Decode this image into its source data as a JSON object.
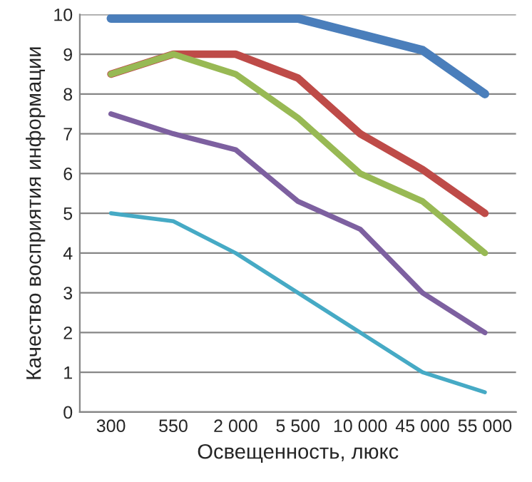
{
  "chart_data": {
    "type": "line",
    "xlabel": "Освещенность, люкс",
    "ylabel": "Качество восприятия информации",
    "categories": [
      "300",
      "550",
      "2 000",
      "5 500",
      "10 000",
      "45 000",
      "55 000"
    ],
    "series": [
      {
        "color": "#4a7ebb",
        "values": [
          9.9,
          9.9,
          9.9,
          9.9,
          9.5,
          9.1,
          8.0
        ]
      },
      {
        "color": "#be4b48",
        "values": [
          8.5,
          9.0,
          9.0,
          8.4,
          7.0,
          6.1,
          5.0
        ]
      },
      {
        "color": "#98b954",
        "values": [
          8.5,
          9.0,
          8.5,
          7.4,
          6.0,
          5.3,
          4.0
        ]
      },
      {
        "color": "#7d60a0",
        "values": [
          7.5,
          7.0,
          6.6,
          5.3,
          4.6,
          3.0,
          2.0
        ]
      },
      {
        "color": "#46aac5",
        "values": [
          5.0,
          4.8,
          4.0,
          3.0,
          2.0,
          1.0,
          0.5
        ]
      }
    ],
    "ylim": [
      0,
      10
    ],
    "yticks": [
      0,
      1,
      2,
      3,
      4,
      5,
      6,
      7,
      8,
      9,
      10
    ],
    "grid": "y",
    "marker": "none",
    "line_style": "solid"
  }
}
